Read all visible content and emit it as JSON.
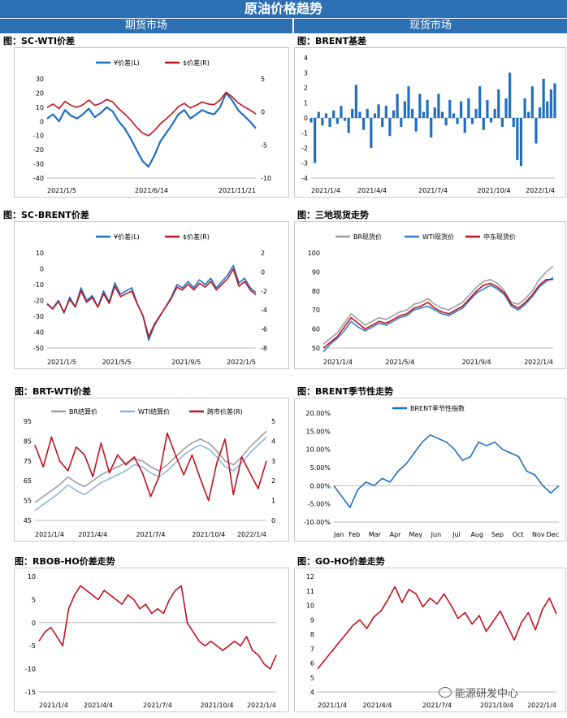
{
  "banner": "原油价格趋势",
  "sections": {
    "futures": "期货市场",
    "spot": "现货市场"
  },
  "watermark": "能源研发中心",
  "chart_data": [
    {
      "id": "sc-wti",
      "type": "line",
      "title": "图：SC-WTI价差",
      "x_ticks": [
        "2021/1/5",
        "2021/6/14",
        "2021/11/21"
      ],
      "y_left": {
        "min": -40,
        "max": 30,
        "ticks": [
          30,
          20,
          10,
          0,
          -10,
          -20,
          -30,
          -40
        ]
      },
      "y_right": {
        "min": -10,
        "max": 5,
        "ticks": [
          5,
          0,
          -5,
          -10
        ]
      },
      "series": [
        {
          "name": "¥价差(L)",
          "axis": "left",
          "color": "#1f6fc0",
          "values": [
            2,
            5,
            0,
            8,
            4,
            2,
            5,
            9,
            3,
            6,
            10,
            7,
            0,
            -5,
            -12,
            -20,
            -28,
            -32,
            -24,
            -14,
            -8,
            -2,
            5,
            8,
            2,
            5,
            8,
            6,
            5,
            10,
            20,
            15,
            8,
            4,
            0,
            -5
          ]
        },
        {
          "name": "$价差(R)",
          "axis": "right",
          "color": "#c1121f",
          "values": [
            0.7,
            1.2,
            0.5,
            1.6,
            1,
            0.7,
            1.1,
            1.8,
            1,
            1.3,
            1.9,
            1.5,
            0.5,
            -0.3,
            -1.2,
            -2.3,
            -3.2,
            -3.6,
            -2.8,
            -1.8,
            -1,
            -0.2,
            0.8,
            1.3,
            0.6,
            1,
            1.5,
            1.2,
            1.1,
            1.8,
            3,
            2.3,
            1.4,
            0.8,
            0.3,
            -0.3
          ]
        }
      ]
    },
    {
      "id": "brent-basis",
      "type": "bar",
      "title": "图：BRENT基差",
      "x_ticks": [
        "2021/1/4",
        "2021/4/4",
        "2021/7/4",
        "2021/10/4",
        "2022/1/4"
      ],
      "y_left": {
        "min": -4,
        "max": 4,
        "ticks": [
          4,
          3,
          2,
          1,
          0,
          -1,
          -2,
          -3,
          -4
        ]
      },
      "series": [
        {
          "name": "BRENT基差",
          "axis": "left",
          "color": "#1f6fc0",
          "values": [
            -0.3,
            -3,
            0.4,
            -0.5,
            0.3,
            -0.6,
            0.5,
            -0.4,
            0.8,
            -0.2,
            -1,
            0.6,
            2.2,
            0.4,
            -0.8,
            0.6,
            -2,
            0.3,
            0.9,
            -0.6,
            0.8,
            -1.2,
            0.5,
            1.6,
            -0.6,
            1.1,
            2.1,
            0.6,
            -0.9,
            1.6,
            0.4,
            1.2,
            -1.3,
            0.7,
            1.6,
            0.4,
            -0.5,
            1.2,
            0.3,
            -0.4,
            1.1,
            -1,
            1.3,
            -0.4,
            0.6,
            2.1,
            -0.8,
            1.2,
            -0.3,
            0.6,
            1.9,
            -0.6,
            1.3,
            3,
            -0.6,
            -2.8,
            -3.2,
            1.3,
            0.4,
            2.1,
            -1.7,
            0.7,
            2.6,
            1.1,
            1.9,
            2.3
          ]
        }
      ]
    },
    {
      "id": "sc-brent",
      "type": "line",
      "title": "图：SC-BRENT价差",
      "x_ticks": [
        "2021/1/5",
        "2021/5/5",
        "2021/9/5",
        "2022/1/5"
      ],
      "y_left": {
        "min": -50,
        "max": 10,
        "ticks": [
          10,
          0,
          -10,
          -20,
          -30,
          -40,
          -50
        ]
      },
      "y_right": {
        "min": -8,
        "max": 2,
        "ticks": [
          2,
          0,
          -2,
          -4,
          -6,
          -8
        ]
      },
      "series": [
        {
          "name": "¥价差(L)",
          "axis": "left",
          "color": "#1f6fc0",
          "values": [
            -22,
            -25,
            -20,
            -28,
            -18,
            -24,
            -12,
            -20,
            -17,
            -24,
            -14,
            -21,
            -9,
            -16,
            -14,
            -12,
            -22,
            -30,
            -45,
            -36,
            -30,
            -24,
            -18,
            -10,
            -12,
            -8,
            -12,
            -7,
            -10,
            -6,
            -12,
            -8,
            -4,
            2,
            -9,
            -6,
            -12,
            -15
          ]
        },
        {
          "name": "$价差(R)",
          "axis": "right",
          "color": "#c1121f",
          "values": [
            -3.4,
            -3.9,
            -3.1,
            -4.2,
            -2.9,
            -3.7,
            -2,
            -3.2,
            -2.7,
            -3.7,
            -2.3,
            -3.3,
            -1.5,
            -2.6,
            -2.3,
            -2,
            -3.4,
            -4.6,
            -6.8,
            -5.5,
            -4.6,
            -3.7,
            -2.8,
            -1.6,
            -1.9,
            -1.3,
            -1.9,
            -1.2,
            -1.6,
            -1,
            -1.9,
            -1.3,
            -0.7,
            0.3,
            -1.5,
            -1,
            -1.9,
            -2.4
          ]
        }
      ]
    },
    {
      "id": "three-spot",
      "type": "line",
      "title": "图：三地现货走势",
      "x_ticks": [
        "2021/1/4",
        "2021/5/4",
        "2021/9/4",
        "2022/1/4"
      ],
      "y_left": {
        "min": 50,
        "max": 100,
        "ticks": [
          100,
          90,
          80,
          70,
          60,
          50
        ]
      },
      "series": [
        {
          "name": "BR现货价",
          "axis": "left",
          "color": "#9e9e9e",
          "values": [
            52,
            55,
            58,
            63,
            68,
            65,
            62,
            64,
            66,
            65,
            67,
            69,
            70,
            73,
            74,
            76,
            73,
            71,
            70,
            72,
            74,
            78,
            82,
            85,
            86,
            84,
            80,
            74,
            73,
            76,
            80,
            86,
            90,
            93
          ]
        },
        {
          "name": "WTI现货价",
          "axis": "left",
          "color": "#2f7fd0",
          "values": [
            48,
            52,
            55,
            59,
            64,
            61,
            59,
            61,
            63,
            62,
            64,
            66,
            67,
            70,
            71,
            72,
            70,
            68,
            67,
            69,
            71,
            75,
            79,
            81,
            83,
            81,
            78,
            72,
            70,
            73,
            77,
            82,
            85,
            87
          ]
        },
        {
          "name": "中东现货价",
          "axis": "left",
          "color": "#c1121f",
          "values": [
            50,
            53,
            56,
            61,
            66,
            63,
            60,
            62,
            64,
            63,
            65,
            67,
            68,
            71,
            72,
            74,
            71,
            69,
            68,
            70,
            72,
            76,
            80,
            83,
            84,
            82,
            79,
            73,
            71,
            74,
            78,
            83,
            86,
            86
          ]
        }
      ]
    },
    {
      "id": "brt-wti",
      "type": "line",
      "title": "图：BRT-WTI价差",
      "x_ticks": [
        "2021/1/4",
        "2021/4/4",
        "2021/7/4",
        "2021/10/4",
        "2022/1/4"
      ],
      "y_left": {
        "min": 45,
        "max": 95,
        "ticks": [
          95,
          85,
          75,
          65,
          55,
          45
        ]
      },
      "y_right": {
        "min": 0,
        "max": 5,
        "ticks": [
          5,
          4,
          3,
          2,
          1,
          0
        ]
      },
      "series": [
        {
          "name": "BR结算价",
          "axis": "left",
          "color": "#9e9e9e",
          "values": [
            54,
            57,
            60,
            63,
            67,
            64,
            62,
            65,
            68,
            70,
            72,
            74,
            76,
            75,
            72,
            70,
            73,
            77,
            81,
            84,
            86,
            84,
            80,
            75,
            73,
            77,
            82,
            86,
            90
          ]
        },
        {
          "name": "WTI结算价",
          "axis": "left",
          "color": "#8fb5df",
          "values": [
            50,
            53,
            56,
            59,
            63,
            60,
            58,
            61,
            64,
            66,
            68,
            70,
            73,
            72,
            69,
            67,
            70,
            74,
            78,
            81,
            83,
            81,
            77,
            72,
            70,
            74,
            79,
            83,
            87
          ]
        },
        {
          "name": "跨市价差(R)",
          "axis": "right",
          "color": "#c1121f",
          "values": [
            3.8,
            2.7,
            4.2,
            3,
            2.5,
            3.7,
            3.3,
            2.2,
            3.9,
            2.4,
            3.3,
            2.8,
            3.2,
            2.4,
            1.2,
            2.2,
            4.4,
            3.3,
            2.3,
            3.3,
            2.1,
            1,
            2.9,
            4.1,
            1.3,
            3.2,
            2.4,
            1.6,
            3
          ]
        }
      ]
    },
    {
      "id": "brent-seasonal",
      "type": "line",
      "title": "图：BRENT季节性走势",
      "x_ticks": [
        "Jan",
        "Feb",
        "Mar",
        "Apr",
        "May",
        "Jun",
        "Jul",
        "Aug",
        "Sep",
        "Oct",
        "Nov",
        "Dec"
      ],
      "y_left": {
        "min": -10,
        "max": 20,
        "ticks": [
          "20.00%",
          "15.00%",
          "10.00%",
          "5.00%",
          "0.00%",
          "-5.00%",
          "-10.00%"
        ]
      },
      "series": [
        {
          "name": "BRENT季节性指数",
          "axis": "left",
          "color": "#1f6fc0",
          "values": [
            0,
            -3,
            -6,
            -1,
            1,
            0,
            2,
            1,
            4,
            6,
            9,
            12,
            14,
            13,
            12,
            10,
            7,
            8,
            12,
            11,
            12,
            10,
            9,
            8,
            4,
            3,
            0,
            -2,
            0
          ]
        }
      ]
    },
    {
      "id": "rbob-ho",
      "type": "line",
      "title": "图：RBOB-HO价差走势",
      "x_ticks": [
        "2021/1/4",
        "2021/4/4",
        "2021/7/4",
        "2021/10/4",
        "2022/1/4"
      ],
      "y_left": {
        "min": -15,
        "max": 10,
        "ticks": [
          10,
          5,
          0,
          -5,
          -10,
          -15
        ]
      },
      "series": [
        {
          "name": "RBOB-HO价差",
          "axis": "left",
          "color": "#c1121f",
          "values": [
            -4,
            -2,
            -1,
            -3,
            -5,
            3,
            6,
            8,
            7,
            6,
            5,
            7,
            6,
            5,
            4,
            6,
            5,
            3,
            4,
            2,
            3,
            2,
            5,
            7,
            8,
            0,
            -2,
            -4,
            -5,
            -4,
            -5,
            -6,
            -5,
            -4,
            -5,
            -3,
            -6,
            -7,
            -9,
            -10,
            -7
          ]
        }
      ]
    },
    {
      "id": "go-ho",
      "type": "line",
      "title": "图：GO-HO价差走势",
      "x_ticks": [
        "2021/1/4",
        "2021/4/4",
        "2021/7/4",
        "2021/10/4",
        "2022/1/4"
      ],
      "y_left": {
        "min": 4,
        "max": 12,
        "ticks": [
          12,
          11,
          10,
          9,
          8,
          7,
          6,
          5,
          4
        ]
      },
      "series": [
        {
          "name": "GO-HO价差",
          "axis": "left",
          "color": "#c1121f",
          "values": [
            5.6,
            6.2,
            6.8,
            7.4,
            8,
            8.6,
            9,
            8.4,
            9.2,
            9.6,
            10.4,
            11.3,
            10.2,
            11.1,
            10.8,
            9.9,
            10.5,
            10.1,
            10.8,
            10,
            9.1,
            9.5,
            8.7,
            9.3,
            8.2,
            8.9,
            9.6,
            8.6,
            7.6,
            8.8,
            9.5,
            8.3,
            9.7,
            10.5,
            9.4
          ]
        }
      ]
    }
  ]
}
